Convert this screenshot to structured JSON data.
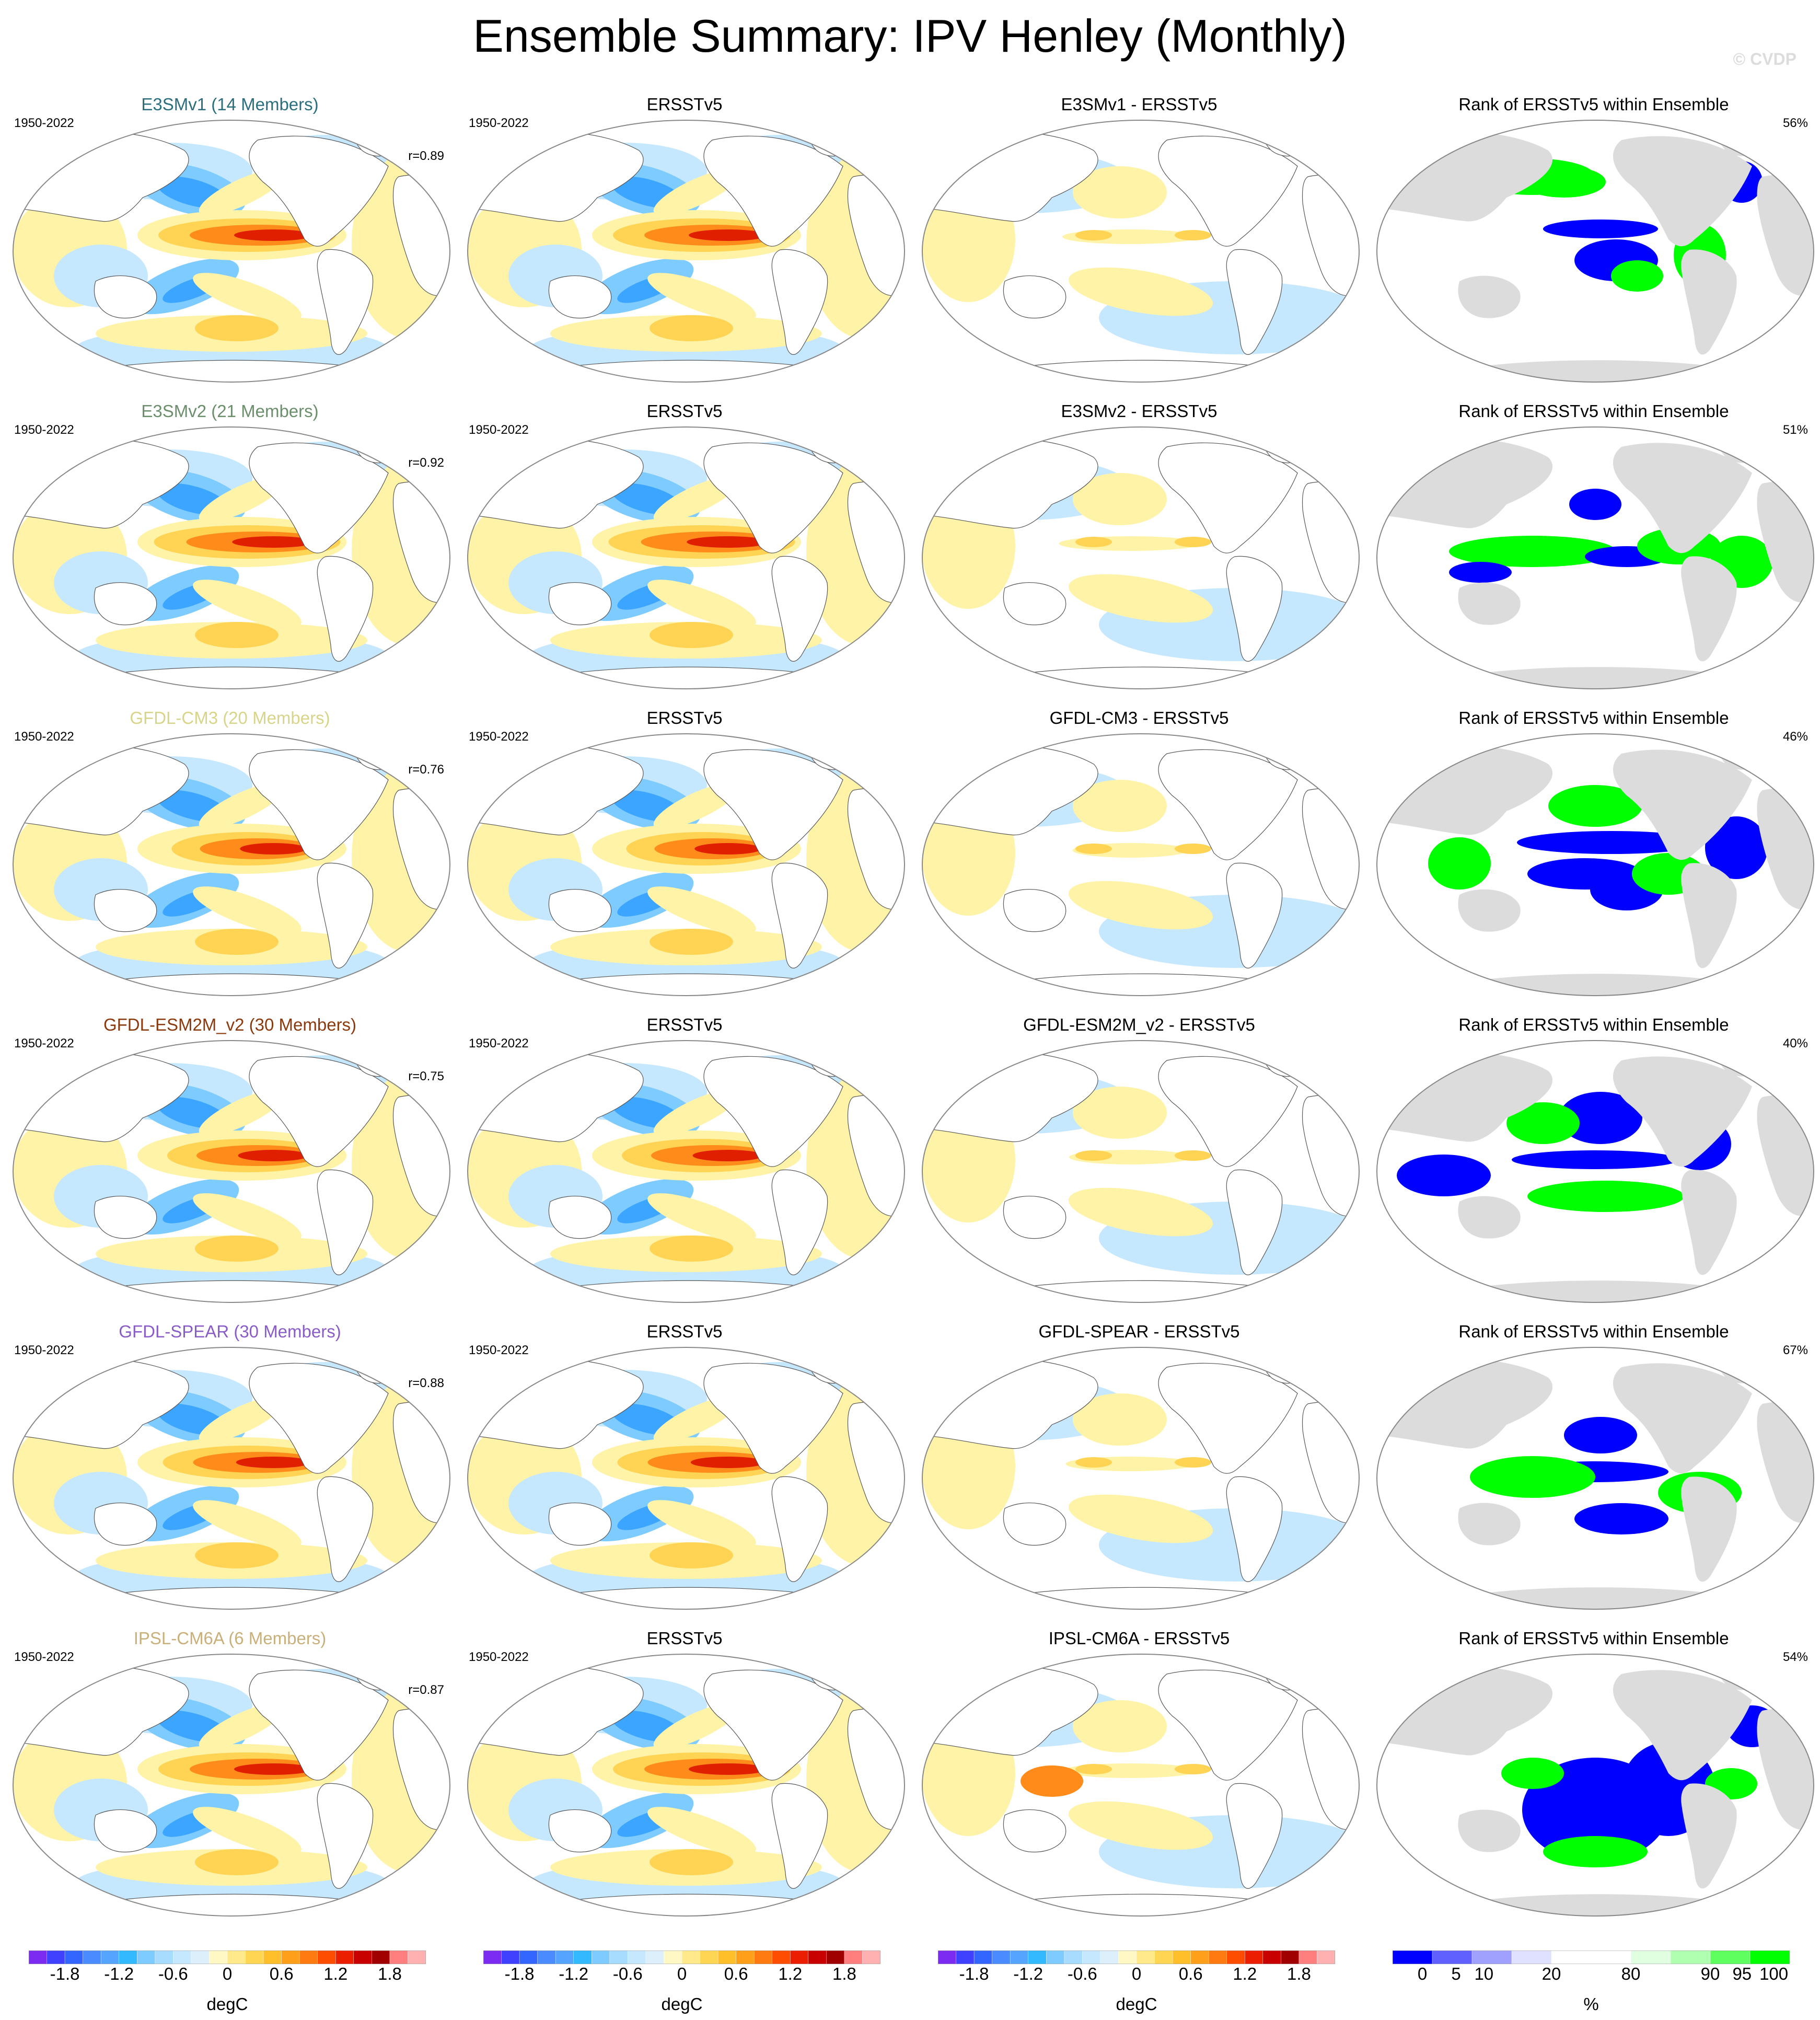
{
  "title": "Ensemble Summary: IPV Henley (Monthly)",
  "copyright": "© CVDP",
  "columns": [
    {
      "type": "model"
    },
    {
      "type": "obs"
    },
    {
      "type": "diff"
    },
    {
      "type": "rank"
    }
  ],
  "rows": [
    {
      "model_title": "E3SMv1 (14 Members)",
      "model_color": "#2b6f7e",
      "years": "1950-2022",
      "r": "r=0.89",
      "obs_title": "ERSSTv5",
      "obs_years": "1950-2022",
      "diff_title": "E3SMv1 - ERSSTv5",
      "rank_title": "Rank of ERSSTv5 within Ensemble",
      "rank_pct": "56%"
    },
    {
      "model_title": "E3SMv2 (21 Members)",
      "model_color": "#6b8f6b",
      "years": "1950-2022",
      "r": "r=0.92",
      "obs_title": "ERSSTv5",
      "obs_years": "1950-2022",
      "diff_title": "E3SMv2 - ERSSTv5",
      "rank_title": "Rank of ERSSTv5 within Ensemble",
      "rank_pct": "51%"
    },
    {
      "model_title": "GFDL-CM3 (20 Members)",
      "model_color": "#d8d48a",
      "years": "1950-2022",
      "r": "r=0.76",
      "obs_title": "ERSSTv5",
      "obs_years": "1950-2022",
      "diff_title": "GFDL-CM3 - ERSSTv5",
      "rank_title": "Rank of ERSSTv5 within Ensemble",
      "rank_pct": "46%"
    },
    {
      "model_title": "GFDL-ESM2M_v2 (30 Members)",
      "model_color": "#8b3a0e",
      "years": "1950-2022",
      "r": "r=0.75",
      "obs_title": "ERSSTv5",
      "obs_years": "1950-2022",
      "diff_title": "GFDL-ESM2M_v2 - ERSSTv5",
      "rank_title": "Rank of ERSSTv5 within Ensemble",
      "rank_pct": "40%"
    },
    {
      "model_title": "GFDL-SPEAR (30 Members)",
      "model_color": "#8a5cc8",
      "years": "1950-2022",
      "r": "r=0.88",
      "obs_title": "ERSSTv5",
      "obs_years": "1950-2022",
      "diff_title": "GFDL-SPEAR - ERSSTv5",
      "rank_title": "Rank of ERSSTv5 within Ensemble",
      "rank_pct": "67%"
    },
    {
      "model_title": "IPSL-CM6A (6 Members)",
      "model_color": "#c9b07a",
      "years": "1950-2022",
      "r": "r=0.87",
      "obs_title": "ERSSTv5",
      "obs_years": "1950-2022",
      "diff_title": "IPSL-CM6A - ERSSTv5",
      "rank_title": "Rank of ERSSTv5 within Ensemble",
      "rank_pct": "54%"
    }
  ],
  "colorbars": {
    "sst": {
      "units": "degC",
      "ticks": [
        "-1.8",
        "-1.2",
        "-0.6",
        "0",
        "0.6",
        "1.2",
        "1.8"
      ],
      "colors": [
        "#7b2cf0",
        "#4040ff",
        "#3366ff",
        "#4a8cff",
        "#55a5ff",
        "#33b9ff",
        "#7ecbff",
        "#a8dcff",
        "#c6e8ff",
        "#dceffa",
        "#fff8c4",
        "#ffe98a",
        "#ffd654",
        "#ffbf2a",
        "#ff9f1a",
        "#ff7a10",
        "#ff4d00",
        "#ec1e00",
        "#c80000",
        "#a00000",
        "#ff7f7f",
        "#ffb0b0"
      ]
    },
    "rank": {
      "units": "%",
      "ticks": [
        "0",
        "5",
        "10",
        "20",
        "80",
        "90",
        "95",
        "100"
      ],
      "colors": [
        "#0000ff",
        "#6060ff",
        "#a0a0ff",
        "#e0e0ff",
        "#ffffff",
        "#ffffff",
        "#e0ffe0",
        "#b0ffb0",
        "#60ff60",
        "#00ff00"
      ]
    }
  },
  "map_colors": {
    "warm_light": "#fff3a8",
    "warm_mid": "#ffd454",
    "warm_strong": "#ff8c1a",
    "warm_core": "#e01e00",
    "cool_light": "#c6e8ff",
    "cool_mid": "#7ecbff",
    "cool_strong": "#3ca5ff",
    "rank_low": "#0000ff",
    "rank_high": "#00ff00",
    "rank_land": "#dcdcdc"
  }
}
